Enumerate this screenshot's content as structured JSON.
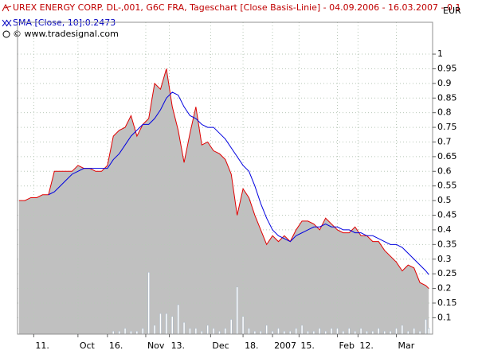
{
  "chart_data": {
    "type": "area",
    "currency": "EUR",
    "credit": "© www.tradesignal.com",
    "grid": true,
    "x": [
      0,
      2,
      4,
      6,
      8,
      10,
      12,
      14,
      16,
      18,
      20,
      22,
      24,
      26,
      28,
      30,
      32,
      34,
      36,
      38,
      40,
      42,
      44,
      46,
      48,
      50,
      52,
      54,
      56,
      58,
      60,
      62,
      64,
      66,
      68,
      70,
      72,
      74,
      76,
      78,
      80,
      82,
      84,
      86,
      88,
      90,
      92,
      94,
      96,
      98,
      100,
      102,
      104,
      106,
      108,
      110,
      112,
      114,
      116,
      118,
      120,
      122,
      124,
      126,
      128,
      130,
      132,
      134,
      136,
      138,
      139
    ],
    "series": [
      {
        "name": "UREX ENERGY CORP. DL-,001, G6C FRA, Tageschart [Close Basis-Linie] - 04.09.2006 - 16.03.2007 - 0.1",
        "color": "#e00000",
        "fill": "#c0c0c0",
        "values": [
          0.5,
          0.5,
          0.51,
          0.51,
          0.52,
          0.52,
          0.6,
          0.6,
          0.6,
          0.6,
          0.62,
          0.61,
          0.61,
          0.6,
          0.6,
          0.62,
          0.72,
          0.74,
          0.75,
          0.79,
          0.72,
          0.76,
          0.78,
          0.9,
          0.88,
          0.95,
          0.82,
          0.74,
          0.63,
          0.73,
          0.82,
          0.69,
          0.7,
          0.67,
          0.66,
          0.64,
          0.59,
          0.45,
          0.54,
          0.51,
          0.45,
          0.4,
          0.35,
          0.38,
          0.36,
          0.38,
          0.36,
          0.4,
          0.43,
          0.43,
          0.42,
          0.4,
          0.44,
          0.42,
          0.4,
          0.39,
          0.39,
          0.41,
          0.38,
          0.38,
          0.36,
          0.36,
          0.33,
          0.31,
          0.29,
          0.26,
          0.28,
          0.27,
          0.22,
          0.21,
          0.2
        ]
      },
      {
        "name": "SMA [Close, 10]:0.2473",
        "color": "#0000e0",
        "values": [
          null,
          null,
          null,
          null,
          null,
          0.52,
          0.53,
          0.55,
          0.57,
          0.59,
          0.6,
          0.61,
          0.61,
          0.61,
          0.61,
          0.61,
          0.64,
          0.66,
          0.69,
          0.72,
          0.74,
          0.76,
          0.76,
          0.78,
          0.81,
          0.85,
          0.87,
          0.86,
          0.82,
          0.79,
          0.78,
          0.76,
          0.75,
          0.75,
          0.73,
          0.71,
          0.68,
          0.65,
          0.62,
          0.6,
          0.55,
          0.49,
          0.44,
          0.4,
          0.38,
          0.37,
          0.36,
          0.38,
          0.39,
          0.4,
          0.41,
          0.41,
          0.42,
          0.41,
          0.41,
          0.4,
          0.4,
          0.39,
          0.39,
          0.38,
          0.38,
          0.37,
          0.36,
          0.35,
          0.35,
          0.34,
          0.32,
          0.3,
          0.28,
          0.26,
          0.2473
        ]
      }
    ],
    "volume": {
      "fill": "#ffffff",
      "stroke": "#a8b8c8",
      "values": [
        0,
        0,
        0,
        0,
        0,
        0,
        0,
        0,
        0,
        0,
        0,
        0,
        0,
        0,
        0,
        0,
        1,
        1,
        2,
        1,
        1,
        2,
        21,
        3,
        7,
        7,
        6,
        10,
        4,
        2,
        2,
        1,
        3,
        2,
        1,
        2,
        5,
        16,
        6,
        2,
        1,
        1,
        3,
        1,
        2,
        1,
        1,
        2,
        3,
        1,
        1,
        2,
        1,
        2,
        2,
        1,
        2,
        1,
        2,
        1,
        1,
        2,
        1,
        1,
        2,
        3,
        1,
        2,
        1,
        5,
        2
      ]
    },
    "xlim": [
      -0.5,
      140.3
    ],
    "xticks": [
      {
        "value": 5,
        "label": "11."
      },
      {
        "value": 20,
        "label": "Oct"
      },
      {
        "value": 30,
        "label": "16."
      },
      {
        "value": 43,
        "label": "Nov"
      },
      {
        "value": 51,
        "label": "13."
      },
      {
        "value": 65,
        "label": "Dec"
      },
      {
        "value": 76,
        "label": "18."
      },
      {
        "value": 86,
        "label": "2007"
      },
      {
        "value": 95,
        "label": "15."
      },
      {
        "value": 108,
        "label": "Feb"
      },
      {
        "value": 115,
        "label": "12."
      },
      {
        "value": 128,
        "label": "Mar"
      }
    ],
    "ylim": [
      0.044,
      1.049
    ],
    "yticks": [
      0.1,
      0.15,
      0.2,
      0.25,
      0.3,
      0.35,
      0.4,
      0.45,
      0.5,
      0.55,
      0.6,
      0.65,
      0.7,
      0.75,
      0.8,
      0.85,
      0.9,
      0.95,
      1
    ],
    "y2lim": [
      0,
      100
    ]
  }
}
